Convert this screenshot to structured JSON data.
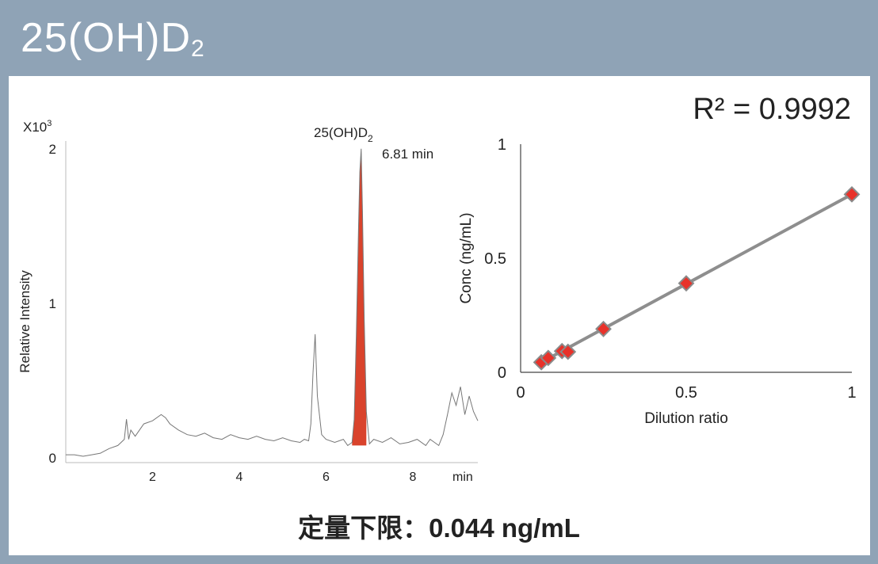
{
  "title": {
    "main": "25(OH)D",
    "sub": "2"
  },
  "footer": "定量下限：0.044 ng/mL",
  "colors": {
    "header_bg": "#8fa3b6",
    "peak_fill": "#d9432c",
    "marker": "#e8322a",
    "fit_line": "#8e8e8e"
  },
  "chart_data": [
    {
      "type": "line",
      "ylabel": "Relative Intensity",
      "y_multiplier": "X10",
      "y_multiplier_exp": "3",
      "y_ticks": [
        "0",
        "1",
        "2"
      ],
      "x_ticks": [
        "2",
        "4",
        "6",
        "8"
      ],
      "x_unit": "min",
      "xlim": [
        0,
        9.5
      ],
      "ylim": [
        0,
        2.05
      ],
      "peak_label": {
        "name": "25(OH)D",
        "sub": "2",
        "time": "6.81 min",
        "x": 6.81
      },
      "trace": {
        "x": [
          0.0,
          0.2,
          0.4,
          0.6,
          0.8,
          1.0,
          1.2,
          1.35,
          1.4,
          1.45,
          1.5,
          1.6,
          1.8,
          2.0,
          2.2,
          2.3,
          2.4,
          2.6,
          2.8,
          3.0,
          3.2,
          3.4,
          3.6,
          3.8,
          4.0,
          4.2,
          4.4,
          4.6,
          4.8,
          5.0,
          5.2,
          5.4,
          5.5,
          5.6,
          5.65,
          5.7,
          5.75,
          5.8,
          5.9,
          6.0,
          6.2,
          6.4,
          6.5,
          6.6,
          6.65,
          6.7,
          6.75,
          6.78,
          6.81,
          6.84,
          6.88,
          6.93,
          7.0,
          7.1,
          7.3,
          7.5,
          7.7,
          7.9,
          8.1,
          8.3,
          8.4,
          8.5,
          8.6,
          8.7,
          8.8,
          8.9,
          9.0,
          9.1,
          9.2,
          9.3,
          9.4,
          9.5
        ],
        "y": [
          0.02,
          0.02,
          0.01,
          0.02,
          0.03,
          0.06,
          0.08,
          0.12,
          0.25,
          0.12,
          0.18,
          0.14,
          0.22,
          0.24,
          0.28,
          0.26,
          0.22,
          0.18,
          0.15,
          0.14,
          0.16,
          0.13,
          0.12,
          0.15,
          0.13,
          0.12,
          0.14,
          0.12,
          0.11,
          0.13,
          0.11,
          0.1,
          0.12,
          0.11,
          0.22,
          0.55,
          0.8,
          0.4,
          0.15,
          0.12,
          0.1,
          0.12,
          0.08,
          0.1,
          0.25,
          0.8,
          1.5,
          1.85,
          2.0,
          1.6,
          0.9,
          0.3,
          0.09,
          0.12,
          0.1,
          0.13,
          0.09,
          0.1,
          0.12,
          0.08,
          0.12,
          0.1,
          0.08,
          0.15,
          0.28,
          0.42,
          0.34,
          0.46,
          0.28,
          0.4,
          0.3,
          0.24
        ]
      }
    },
    {
      "type": "scatter",
      "annotation": "R² = 0.9992",
      "xlabel": "Dilution ratio",
      "ylabel": "Conc (ng/mL)",
      "x_ticks": [
        "0",
        "0.5",
        "1"
      ],
      "y_ticks": [
        "0",
        "0.5",
        "1"
      ],
      "xlim": [
        0,
        1
      ],
      "ylim": [
        0,
        1
      ],
      "points": [
        {
          "x": 0.0625,
          "y": 0.044
        },
        {
          "x": 0.0833,
          "y": 0.063
        },
        {
          "x": 0.125,
          "y": 0.093
        },
        {
          "x": 0.143,
          "y": 0.09
        },
        {
          "x": 0.25,
          "y": 0.19
        },
        {
          "x": 0.5,
          "y": 0.39
        },
        {
          "x": 1.0,
          "y": 0.78
        }
      ],
      "fit": {
        "x": [
          0.0625,
          1.0
        ],
        "y": [
          0.044,
          0.78
        ]
      }
    }
  ]
}
